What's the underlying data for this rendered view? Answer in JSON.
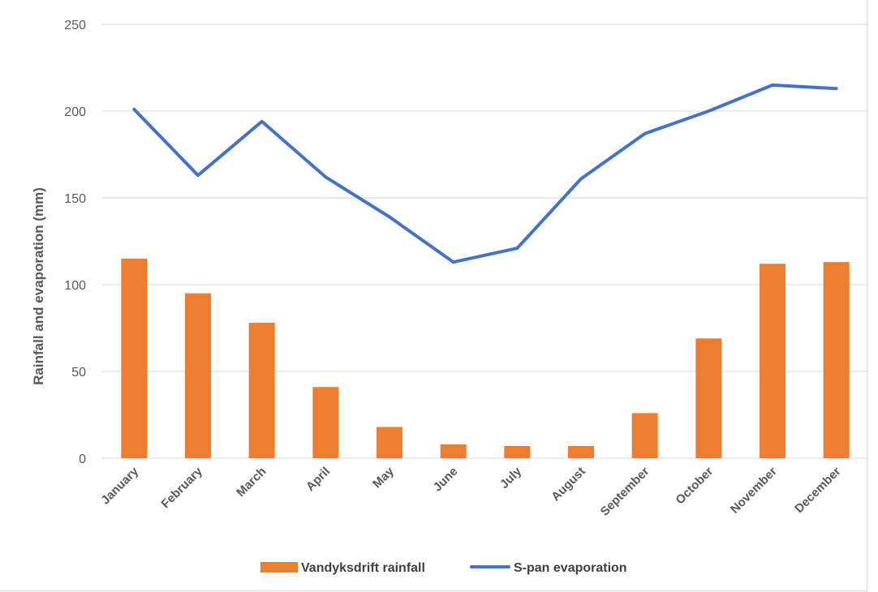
{
  "chart_data": {
    "type": "bar",
    "title": "",
    "xlabel": "",
    "ylabel": "Rainfall and evaporation (mm)",
    "ylim": [
      0,
      250
    ],
    "yticks": [
      0,
      50,
      100,
      150,
      200,
      250
    ],
    "grid": true,
    "legend_position": "bottom",
    "categories": [
      "January",
      "February",
      "March",
      "April",
      "May",
      "June",
      "July",
      "August",
      "September",
      "October",
      "November",
      "December"
    ],
    "series": [
      {
        "name": "Vandyksdrift rainfall",
        "type": "bar",
        "color": "#ED7D31",
        "values": [
          115,
          95,
          78,
          41,
          18,
          8,
          7,
          7,
          26,
          69,
          112,
          113
        ]
      },
      {
        "name": "S-pan evaporation",
        "type": "line",
        "color": "#4472C4",
        "values": [
          201,
          163,
          194,
          162,
          139,
          113,
          121,
          161,
          187,
          200,
          215,
          213
        ]
      }
    ]
  }
}
